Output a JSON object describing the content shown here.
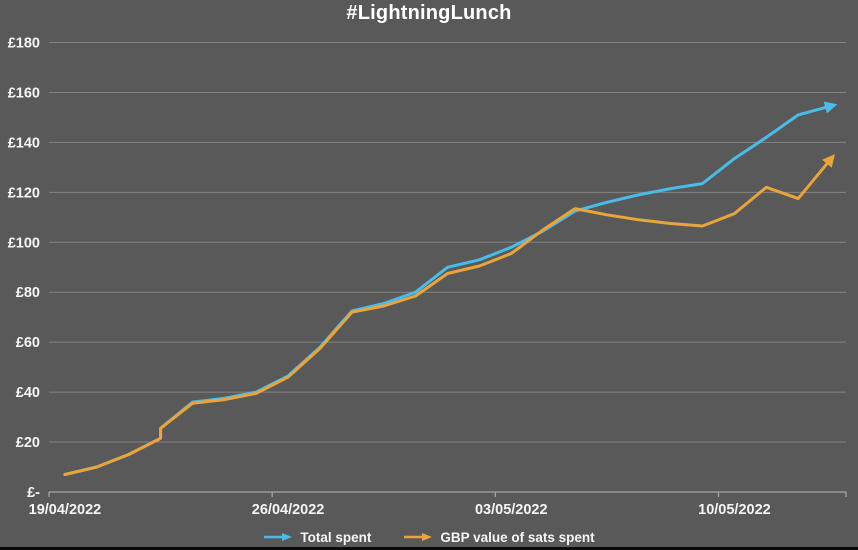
{
  "colors": {
    "background": "#595959",
    "grid": "#838383",
    "axis": "#a6a6a6",
    "text": "#f5f5f5",
    "title": "#ffffff",
    "series_blue": "#4bbbe9",
    "series_orange": "#e9a53c",
    "bottom_border": "#0b0b0b"
  },
  "chart_data": {
    "type": "line",
    "title": "#LightningLunch",
    "legend_position": "bottom",
    "marker_style": "arrow-end",
    "x_axis": {
      "tick_labels": [
        "19/04/2022",
        "26/04/2022",
        "03/05/2022",
        "10/05/2022"
      ],
      "tick_days": [
        0,
        7,
        14,
        21
      ],
      "total_days": 25
    },
    "y_axis": {
      "tick_labels": [
        "£-",
        "£20",
        "£40",
        "£60",
        "£80",
        "£100",
        "£120",
        "£140",
        "£160",
        "£180"
      ],
      "tick_values": [
        0,
        20,
        40,
        60,
        80,
        100,
        120,
        140,
        160,
        180
      ],
      "min": 0,
      "max": 180,
      "grid": true,
      "currency": "GBP"
    },
    "x_days_from_first_tick": [
      0,
      1,
      2,
      3,
      3,
      4,
      5,
      6,
      7,
      8,
      9,
      10,
      11,
      12,
      13,
      14,
      15,
      16,
      17,
      18,
      19,
      20,
      21,
      22,
      23,
      24
    ],
    "series": [
      {
        "name": "Total spent",
        "color": "#4bbbe9",
        "values": [
          7,
          10,
          15,
          21.5,
          25.5,
          36,
          37.5,
          40,
          46.5,
          58,
          72.5,
          75.5,
          80,
          90,
          93,
          98,
          104.5,
          112.5,
          116,
          119,
          121.5,
          123.5,
          133.5,
          142,
          151,
          154.5
        ]
      },
      {
        "name": "GBP value of sats spent",
        "color": "#e9a53c",
        "values": [
          7,
          10,
          15,
          21.5,
          25.5,
          35.5,
          37,
          39.5,
          46,
          57.5,
          72,
          74.5,
          78.5,
          87.5,
          90.5,
          95.5,
          105,
          113.5,
          111,
          109,
          107.5,
          106.5,
          111.5,
          122,
          117.5,
          133
        ]
      }
    ]
  }
}
